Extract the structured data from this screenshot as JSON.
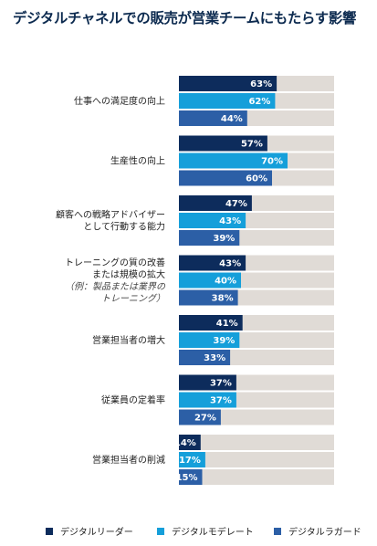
{
  "title": "デジタルチャネルでの販売が営業チームにもたらす影響",
  "colors": {
    "leader": "#0d2c5c",
    "moderate": "#159fda",
    "laggard": "#2c5fa6",
    "track": "#e0dbd6"
  },
  "chart_data": {
    "type": "bar",
    "orientation": "horizontal",
    "title": "デジタルチャネルでの販売が営業チームにもたらす影響",
    "value_format": "percent",
    "xlim": [
      0,
      100
    ],
    "grid": false,
    "legend_position": "bottom",
    "categories": [
      {
        "lines": [
          "仕事への満足度の向上"
        ]
      },
      {
        "lines": [
          "生産性の向上"
        ]
      },
      {
        "lines": [
          "顧客への戦略アドバイザー",
          "として行動する能力"
        ]
      },
      {
        "lines": [
          "トレーニングの質の改善",
          "または規模の拡大"
        ],
        "note": [
          "（例：製品または業界の",
          "トレーニング）"
        ]
      },
      {
        "lines": [
          "営業担当者の増大"
        ]
      },
      {
        "lines": [
          "従業員の定着率"
        ]
      },
      {
        "lines": [
          "営業担当者の削減"
        ]
      }
    ],
    "series": [
      {
        "name": "デジタルリーダー",
        "color_key": "leader",
        "values": [
          63,
          57,
          47,
          43,
          41,
          37,
          14
        ]
      },
      {
        "name": "デジタルモデレート",
        "color_key": "moderate",
        "values": [
          62,
          70,
          43,
          40,
          39,
          37,
          17
        ]
      },
      {
        "name": "デジタルラガード",
        "color_key": "laggard",
        "values": [
          44,
          60,
          39,
          38,
          33,
          27,
          15
        ]
      }
    ]
  }
}
